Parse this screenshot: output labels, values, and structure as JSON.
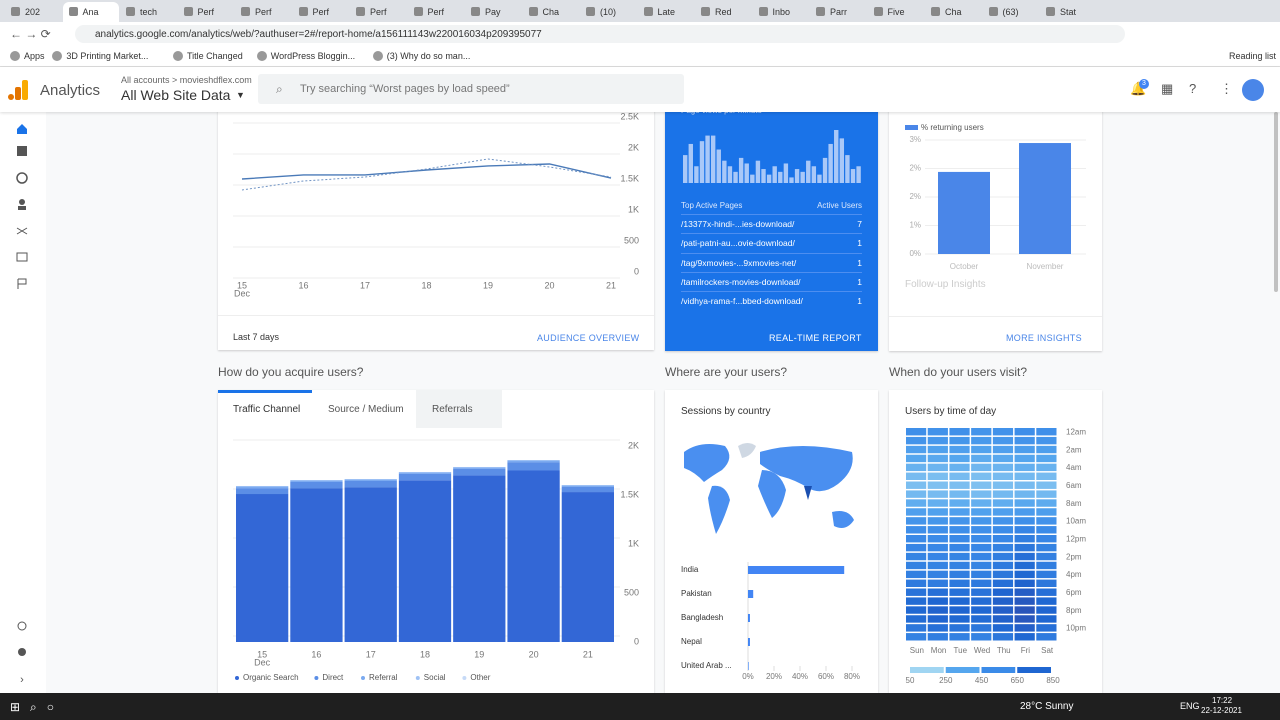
{
  "browser": {
    "tabs": [
      "202",
      "Ana",
      "tech",
      "Perf",
      "Perf",
      "Perf",
      "Perf",
      "Perf",
      "Pay",
      "Cha",
      "(10)",
      "Late",
      "Red",
      "Inbo",
      "Parr",
      "Five",
      "Cha",
      "(63)",
      "Stat"
    ],
    "url": "analytics.google.com/analytics/web/?authuser=2#/report-home/a156111143w220016034p209395077",
    "bookmarks": [
      "Apps",
      "3D Printing Market...",
      "Title Changed",
      "WordPress Bloggin...",
      "(3) Why do so man..."
    ],
    "reading_list": "Reading list"
  },
  "header": {
    "product": "Analytics",
    "breadcrumb": "All accounts > movieshdflex.com",
    "property": "All Web Site Data",
    "search": "Try searching “Worst pages by load speed”",
    "notifications": "3"
  },
  "audience": {
    "range": "Last 7 days",
    "link": "AUDIENCE OVERVIEW"
  },
  "realtime": {
    "title": "Page views per minute",
    "pages_header": "Top Active Pages",
    "users_header": "Active Users",
    "rows": [
      [
        "/13377x-hindi-...ies-download/",
        "7"
      ],
      [
        "/pati-patni-au...ovie-download/",
        "1"
      ],
      [
        "/tag/9xmovies-...9xmovies-net/",
        "1"
      ],
      [
        "/tamilrockers-movies-download/",
        "1"
      ],
      [
        "/vidhya-rama-f...bbed-download/",
        "1"
      ]
    ],
    "link": "REAL-TIME REPORT"
  },
  "insights": {
    "followup": "Follow-up Insights",
    "link": "MORE INSIGHTS"
  },
  "sections": {
    "acquire": "How do you acquire users?",
    "where": "Where are your users?",
    "when": "When do your users visit?"
  },
  "acquire_tabs": [
    "Traffic Channel",
    "Source / Medium",
    "Referrals"
  ],
  "countries_title": "Sessions by country",
  "time_title": "Users by time of day",
  "taskbar": {
    "weather": "28°C Sunny",
    "lang": "ENG",
    "time": "17:22",
    "date": "22-12-2021"
  },
  "chart_data": [
    {
      "type": "line",
      "categories": [
        "15",
        "16",
        "17",
        "18",
        "19",
        "20",
        "21"
      ],
      "x_month": "Dec",
      "ylim": [
        0,
        2500
      ],
      "yticks": [
        0,
        500,
        {
          "value": 1000,
          "label": "1K"
        },
        {
          "value": 1500,
          "label": "1.5K"
        },
        {
          "value": 2000,
          "label": "2K"
        },
        {
          "value": 2500,
          "label": "2.5K"
        }
      ],
      "grid": true,
      "series": [
        {
          "color": "#4a7ab8",
          "dashed": false,
          "values": [
            1500,
            1565,
            1565,
            1645,
            1710,
            1742,
            1516
          ]
        },
        {
          "color": "#6f93c4",
          "dashed": true,
          "values": [
            1323,
            1468,
            1532,
            1661,
            1823,
            1694,
            1532
          ]
        }
      ]
    },
    {
      "type": "bar",
      "color": "#a9c8f8",
      "values": [
        10,
        14,
        6,
        15,
        17,
        17,
        12,
        8,
        6,
        4,
        9,
        7,
        3,
        8,
        5,
        3,
        6,
        4,
        7,
        2,
        5,
        4,
        8,
        6,
        3,
        9,
        14,
        19,
        16,
        10,
        5,
        6
      ]
    },
    {
      "type": "bar",
      "legend": "% returning users",
      "color": "#4a86e8",
      "categories": [
        "October",
        "November"
      ],
      "values": [
        2.16,
        2.92
      ],
      "ylim": [
        0,
        3
      ],
      "yticks": [
        {
          "value": 0,
          "label": "0%"
        },
        {
          "value": 0.75,
          "label": "1%"
        },
        {
          "value": 1.5,
          "label": "2%"
        },
        {
          "value": 2.25,
          "label": "2%"
        },
        {
          "value": 3,
          "label": "3%"
        }
      ],
      "grid": true
    },
    {
      "type": "stacked_bar",
      "categories": [
        "15",
        "16",
        "17",
        "18",
        "19",
        "20",
        "21"
      ],
      "x_month": "Dec",
      "ylim": [
        0,
        2000
      ],
      "yticks": [
        0,
        500,
        {
          "value": 1000,
          "label": "1K"
        },
        {
          "value": 1500,
          "label": "1.5K"
        },
        {
          "value": 2000,
          "label": "2K"
        }
      ],
      "grid": true,
      "series": [
        {
          "name": "Organic Search",
          "color": "#3367d6",
          "values": [
            1510,
            1570,
            1580,
            1650,
            1700,
            1750,
            1530
          ]
        },
        {
          "name": "Direct",
          "color": "#5b8ee6",
          "values": [
            60,
            63,
            63,
            65,
            66,
            85,
            52
          ]
        },
        {
          "name": "Referral",
          "color": "#7baaf0",
          "values": [
            18,
            16,
            16,
            16,
            16,
            18,
            16
          ]
        },
        {
          "name": "Social",
          "color": "#9fc2f5",
          "values": [
            3,
            3,
            3,
            3,
            3,
            3,
            3
          ]
        },
        {
          "name": "Other",
          "color": "#c6daf7",
          "values": [
            1,
            1,
            1,
            1,
            1,
            1,
            1
          ]
        }
      ]
    },
    {
      "type": "hbar",
      "color": "#4285f4",
      "categories": [
        "India",
        "Pakistan",
        "Bangladesh",
        "Nepal",
        "United Arab ..."
      ],
      "values": [
        74,
        4,
        1.5,
        1.5,
        0.5
      ],
      "xlim": [
        0,
        80
      ],
      "xticks": [
        {
          "value": 0,
          "label": "0%"
        },
        {
          "value": 20,
          "label": "20%"
        },
        {
          "value": 40,
          "label": "40%"
        },
        {
          "value": 60,
          "label": "60%"
        },
        {
          "value": 80,
          "label": "80%"
        }
      ]
    },
    {
      "type": "heatmap",
      "x": [
        "Sun",
        "Mon",
        "Tue",
        "Wed",
        "Thu",
        "Fri",
        "Sat"
      ],
      "y": [
        "12am",
        null,
        "2am",
        null,
        "4am",
        null,
        "6am",
        null,
        "8am",
        null,
        "10am",
        null,
        "12pm",
        null,
        "2pm",
        null,
        "4pm",
        null,
        "6pm",
        null,
        "8pm",
        null,
        "10pm",
        null
      ],
      "colorbar_ticks": [
        50,
        250,
        450,
        650,
        850
      ],
      "colors": [
        "#a0d5f2",
        "#55a6ee",
        "#3b8be8",
        "#1f66d1",
        "#2c52b6"
      ],
      "values": [
        [
          420,
          400,
          410,
          380,
          400,
          430,
          420
        ],
        [
          380,
          360,
          370,
          350,
          360,
          390,
          380
        ],
        [
          300,
          290,
          300,
          280,
          300,
          320,
          310
        ],
        [
          250,
          240,
          250,
          230,
          240,
          260,
          250
        ],
        [
          200,
          190,
          200,
          180,
          190,
          210,
          200
        ],
        [
          160,
          150,
          160,
          150,
          160,
          170,
          160
        ],
        [
          150,
          140,
          150,
          140,
          150,
          160,
          150
        ],
        [
          170,
          160,
          170,
          160,
          170,
          180,
          170
        ],
        [
          220,
          210,
          220,
          210,
          220,
          240,
          230
        ],
        [
          300,
          290,
          300,
          290,
          300,
          330,
          310
        ],
        [
          380,
          370,
          380,
          370,
          390,
          420,
          400
        ],
        [
          430,
          420,
          430,
          420,
          440,
          480,
          450
        ],
        [
          460,
          450,
          460,
          450,
          470,
          520,
          480
        ],
        [
          480,
          470,
          480,
          470,
          500,
          560,
          500
        ],
        [
          490,
          480,
          490,
          480,
          520,
          600,
          510
        ],
        [
          500,
          490,
          500,
          490,
          540,
          620,
          520
        ],
        [
          510,
          500,
          520,
          510,
          560,
          640,
          530
        ],
        [
          540,
          530,
          550,
          540,
          600,
          680,
          560
        ],
        [
          580,
          600,
          590,
          580,
          660,
          740,
          600
        ],
        [
          620,
          650,
          640,
          620,
          700,
          780,
          640
        ],
        [
          640,
          680,
          660,
          640,
          720,
          820,
          660
        ],
        [
          620,
          660,
          640,
          620,
          700,
          800,
          650
        ],
        [
          560,
          600,
          580,
          560,
          640,
          720,
          600
        ],
        [
          500,
          520,
          510,
          500,
          560,
          640,
          540
        ]
      ]
    }
  ]
}
